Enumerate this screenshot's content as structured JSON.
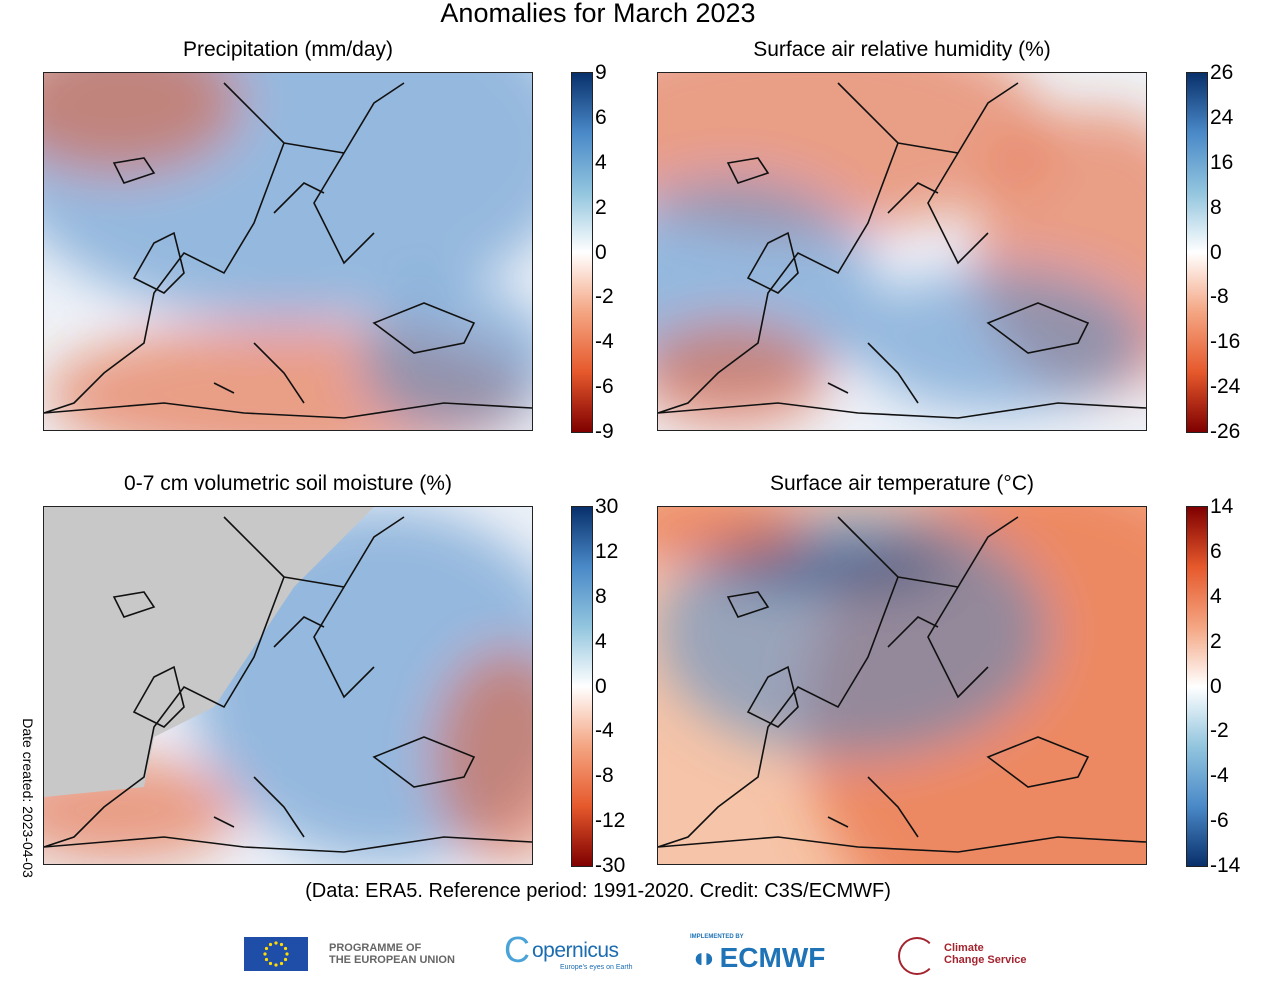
{
  "title": "Anomalies for March 2023",
  "credit": "(Data: ERA5.  Reference period: 1991-2020.  Credit: C3S/ECMWF)",
  "date_created": "Date created: 2023-04-03",
  "colors": {
    "blue_dark": "#08306b",
    "blue": "#4a89c8",
    "white": "#ffffff",
    "red": "#e6592c",
    "red_dark": "#7f0000",
    "land_mask": "#c8c8c8",
    "eu_blue": "#1f4ea8",
    "eu_yellow": "#ffdd00",
    "copernicus_blue": "#1b6cb0",
    "ecmwf_blue": "#1f73b7",
    "c3s_red": "#a3242f"
  },
  "panels": [
    {
      "title": "Precipitation (mm/day)",
      "ticks": [
        "9",
        "6",
        "4",
        "2",
        "0",
        "-2",
        "-4",
        "-6",
        "-9"
      ],
      "colormap": "blue-high"
    },
    {
      "title": "Surface air relative humidity (%)",
      "ticks": [
        "26",
        "24",
        "16",
        "8",
        "0",
        "-8",
        "-16",
        "-24",
        "-26"
      ],
      "colormap": "blue-high"
    },
    {
      "title": "0-7 cm volumetric soil moisture (%)",
      "ticks": [
        "30",
        "12",
        "8",
        "4",
        "0",
        "-4",
        "-8",
        "-12",
        "-30"
      ],
      "colormap": "blue-high"
    },
    {
      "title": "Surface air temperature (°C)",
      "ticks": [
        "14",
        "6",
        "4",
        "2",
        "0",
        "-2",
        "-4",
        "-6",
        "-14"
      ],
      "colormap": "red-high"
    }
  ],
  "logos": {
    "eu_text1": "PROGRAMME OF",
    "eu_text2": "THE EUROPEAN UNION",
    "copernicus": "opernicus",
    "copernicus_c": "C",
    "copernicus_tag": "Europe's eyes on Earth",
    "ecmwf_pre": "IMPLEMENTED BY",
    "ecmwf": "ECMWF",
    "c3s1": "Climate",
    "c3s2": "Change Service"
  }
}
